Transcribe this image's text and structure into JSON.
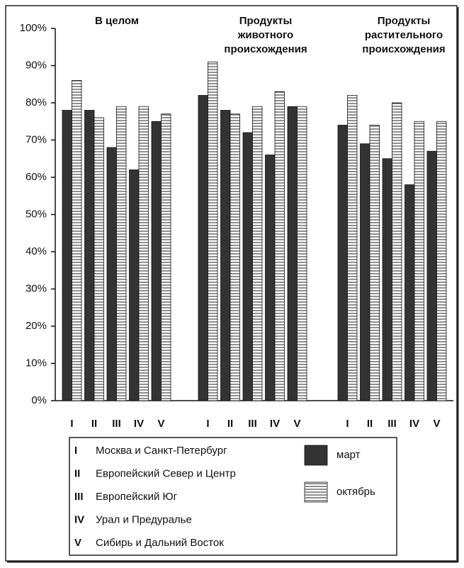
{
  "chart_data": {
    "type": "bar",
    "groups": [
      [
        "В целом"
      ],
      [
        "Продукты",
        "животного",
        "происхождения"
      ],
      [
        "Продукты",
        "растительного",
        "происхождения"
      ]
    ],
    "categories": [
      "I",
      "II",
      "III",
      "IV",
      "V",
      "I",
      "II",
      "III",
      "IV",
      "V",
      "I",
      "II",
      "III",
      "IV",
      "V"
    ],
    "series": [
      {
        "name": "март",
        "color": "#333333",
        "values": [
          78,
          78,
          68,
          62,
          75,
          82,
          78,
          72,
          66,
          79,
          74,
          69,
          65,
          58,
          67
        ]
      },
      {
        "name": "октябрь",
        "color": "hatch",
        "values": [
          86,
          76,
          79,
          79,
          77,
          91,
          77,
          79,
          83,
          79,
          82,
          74,
          80,
          75,
          75
        ]
      }
    ],
    "regions": [
      {
        "code": "I",
        "name": "Москва и Санкт-Петербург"
      },
      {
        "code": "II",
        "name": "Европейский Север и Центр"
      },
      {
        "code": "III",
        "name": "Европейский Юг"
      },
      {
        "code": "IV",
        "name": "Урал и Предуралье"
      },
      {
        "code": "V",
        "name": "Сибирь и Дальний Восток"
      }
    ],
    "ylim": [
      0,
      100
    ],
    "yticks": [
      {
        "value": 0,
        "label": "0%"
      },
      {
        "value": 10,
        "label": "10%"
      },
      {
        "value": 20,
        "label": "20%"
      },
      {
        "value": 30,
        "label": "30%"
      },
      {
        "value": 40,
        "label": "40%"
      },
      {
        "value": 50,
        "label": "50%"
      },
      {
        "value": 60,
        "label": "60%"
      },
      {
        "value": 70,
        "label": "70%"
      },
      {
        "value": 80,
        "label": "80%"
      },
      {
        "value": 90,
        "label": "90%"
      },
      {
        "value": 100,
        "label": "100%"
      }
    ]
  }
}
